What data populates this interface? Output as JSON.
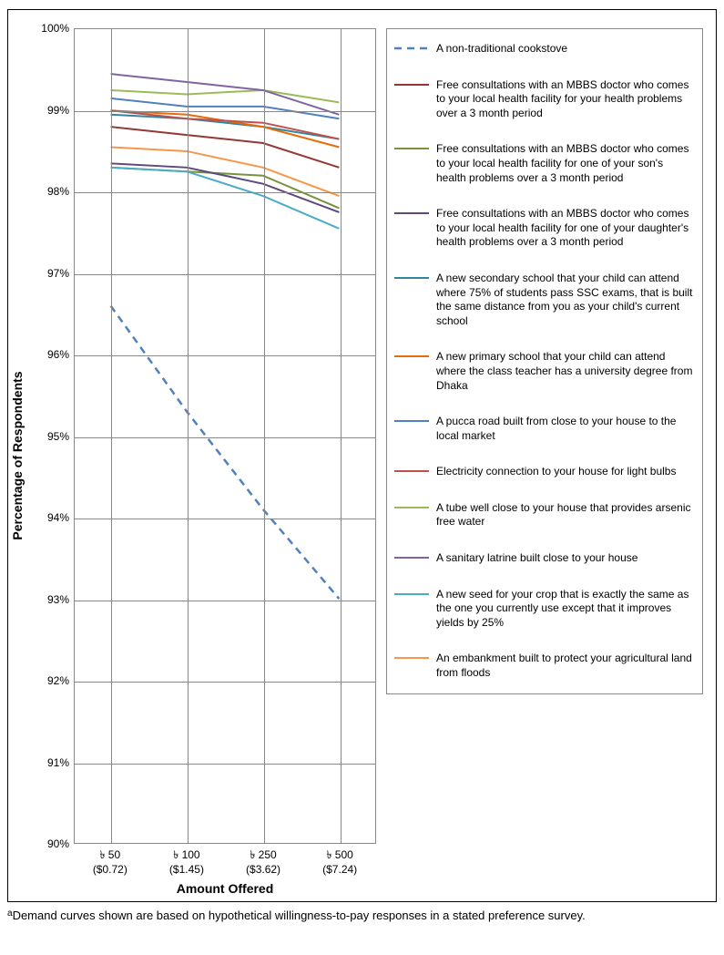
{
  "chart": {
    "type": "line",
    "ylabel": "Percentage of Respondents",
    "xlabel": "Amount Offered",
    "ylim": [
      90,
      100
    ],
    "ytick_step": 1,
    "ytick_format_suffix": "%",
    "xcategories": [
      "৳ 50\n($0.72)",
      "৳ 100\n($1.45)",
      "৳ 250\n($3.62)",
      "৳ 500\n($7.24)"
    ],
    "background_color": "#ffffff",
    "grid_color": "#888888",
    "plot_border_color": "#888888",
    "label_fontsize": 14,
    "tick_fontsize": 12,
    "line_width": 2,
    "series": [
      {
        "name": "A non-traditional cookstove",
        "color": "#4f81bd",
        "dash": "8,6",
        "width": 2.5,
        "y": [
          96.6,
          95.3,
          94.1,
          93.0
        ]
      },
      {
        "name": "Free consultations with an MBBS doctor who comes to your local health facility for your health problems over a 3 month period",
        "color": "#953734",
        "dash": "",
        "width": 2,
        "y": [
          98.8,
          98.7,
          98.6,
          98.3
        ]
      },
      {
        "name": "Free consultations with an MBBS doctor who comes to your local health facility for one of your son's health problems over a 3 month period",
        "color": "#77933c",
        "dash": "",
        "width": 2,
        "y": [
          98.3,
          98.25,
          98.2,
          97.8
        ]
      },
      {
        "name": "Free consultations with an MBBS doctor who comes to your local health facility for one of your daughter's health problems over a 3 month period",
        "color": "#5f497a",
        "dash": "",
        "width": 2,
        "y": [
          98.35,
          98.3,
          98.1,
          97.75
        ]
      },
      {
        "name": "A new secondary school that your child can attend where 75% of students pass SSC exams, that is built the same distance from you as your child's current school",
        "color": "#31859c",
        "dash": "",
        "width": 2,
        "y": [
          98.95,
          98.9,
          98.8,
          98.65
        ]
      },
      {
        "name": "A new primary school that your child can attend where the class teacher has a university degree from Dhaka",
        "color": "#e46c0a",
        "dash": "",
        "width": 2,
        "y": [
          99.0,
          98.95,
          98.8,
          98.55
        ]
      },
      {
        "name": "A pucca road built from close to your house to the local market",
        "color": "#4f81bd",
        "dash": "",
        "width": 2,
        "y": [
          99.15,
          99.05,
          99.05,
          98.9
        ]
      },
      {
        "name": "Electricity connection to your house for light bulbs",
        "color": "#c0504d",
        "dash": "",
        "width": 2,
        "y": [
          99.0,
          98.9,
          98.85,
          98.65
        ]
      },
      {
        "name": "A tube well close to your house that provides arsenic free water",
        "color": "#9bbb59",
        "dash": "",
        "width": 2,
        "y": [
          99.25,
          99.2,
          99.25,
          99.1
        ]
      },
      {
        "name": "A sanitary latrine built close to your house",
        "color": "#8064a2",
        "dash": "",
        "width": 2,
        "y": [
          99.45,
          99.35,
          99.25,
          98.95
        ]
      },
      {
        "name": "A new seed for your crop that is exactly the same as the one you currently use except that it improves yields by 25%",
        "color": "#4bacc6",
        "dash": "",
        "width": 2,
        "y": [
          98.3,
          98.25,
          97.95,
          97.55
        ]
      },
      {
        "name": "An embankment built to protect your agricultural land from floods",
        "color": "#f79646",
        "dash": "",
        "width": 2,
        "y": [
          98.55,
          98.5,
          98.3,
          97.95
        ]
      }
    ]
  },
  "caption_prefix": "a",
  "caption": "Demand curves shown are based on hypothetical willingness-to-pay responses in a stated preference survey."
}
